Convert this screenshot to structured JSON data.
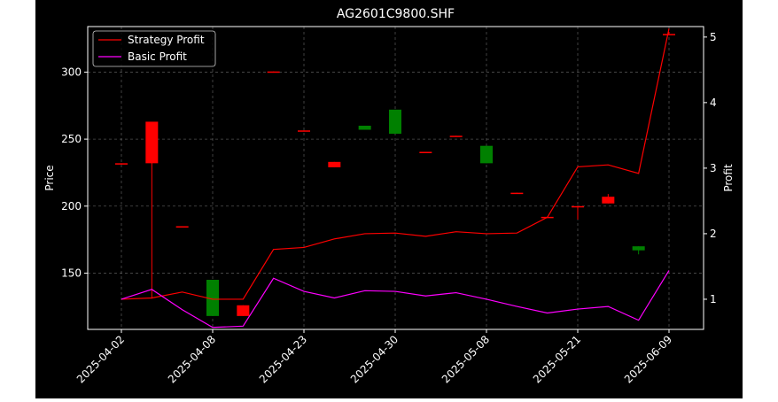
{
  "chart_data": {
    "type": "candlestick",
    "title": "AG2601C9800.SHF",
    "ylabel_left": "Price",
    "ylabel_right": "Profit",
    "xlabel": "",
    "ylim_left": [
      108,
      334
    ],
    "ylim_right": [
      0.54,
      5.16
    ],
    "yticks_left": [
      150,
      200,
      250,
      300
    ],
    "yticks_right": [
      1,
      2,
      3,
      4,
      5
    ],
    "grid": true,
    "legend_position": "upper-left",
    "background": "#000000",
    "x_tick_labels": [
      {
        "index": 0,
        "label": "2025-04-02"
      },
      {
        "index": 3,
        "label": "2025-04-08"
      },
      {
        "index": 6,
        "label": "2025-04-23"
      },
      {
        "index": 9,
        "label": "2025-04-30"
      },
      {
        "index": 12,
        "label": "2025-05-08"
      },
      {
        "index": 15,
        "label": "2025-05-21"
      },
      {
        "index": 18,
        "label": "2025-06-09"
      }
    ],
    "candles": [
      {
        "i": 0,
        "open": 231,
        "close": 232,
        "high": 232,
        "low": 231,
        "color": "#ff0000"
      },
      {
        "i": 1,
        "open": 232,
        "close": 263,
        "high": 263,
        "low": 131,
        "color": "#ff0000"
      },
      {
        "i": 2,
        "open": 184.5,
        "close": 185,
        "high": 185,
        "low": 184.5,
        "color": "#ff0000"
      },
      {
        "i": 3,
        "open": 145,
        "close": 118,
        "high": 145,
        "low": 118,
        "color": "#008000"
      },
      {
        "i": 4,
        "open": 118,
        "close": 126,
        "high": 126,
        "low": 118,
        "color": "#ff0000"
      },
      {
        "i": 5,
        "open": 300,
        "close": 300.5,
        "high": 300.5,
        "low": 300,
        "color": "#ff0000"
      },
      {
        "i": 6,
        "open": 256,
        "close": 256.5,
        "high": 256.5,
        "low": 256,
        "color": "#ff0000"
      },
      {
        "i": 7,
        "open": 229,
        "close": 233,
        "high": 233,
        "low": 229,
        "color": "#ff0000"
      },
      {
        "i": 8,
        "open": 260,
        "close": 257,
        "high": 260,
        "low": 257,
        "color": "#008000"
      },
      {
        "i": 9,
        "open": 272,
        "close": 254,
        "high": 272,
        "low": 254,
        "color": "#008000"
      },
      {
        "i": 10,
        "open": 240,
        "close": 240.5,
        "high": 240.5,
        "low": 240,
        "color": "#ff0000"
      },
      {
        "i": 11,
        "open": 252,
        "close": 252.5,
        "high": 252.5,
        "low": 252,
        "color": "#ff0000"
      },
      {
        "i": 12,
        "open": 245,
        "close": 232,
        "high": 245,
        "low": 232,
        "color": "#008000"
      },
      {
        "i": 13,
        "open": 209.5,
        "close": 210,
        "high": 210,
        "low": 209.5,
        "color": "#ff0000"
      },
      {
        "i": 14,
        "open": 191.5,
        "close": 192,
        "high": 192,
        "low": 191.5,
        "color": "#ff0000"
      },
      {
        "i": 15,
        "open": 199.5,
        "close": 200,
        "high": 200,
        "low": 190,
        "color": "#ff0000"
      },
      {
        "i": 16,
        "open": 202,
        "close": 207,
        "high": 209,
        "low": 202,
        "color": "#ff0000"
      },
      {
        "i": 17,
        "open": 170,
        "close": 167,
        "high": 170,
        "low": 164,
        "color": "#008000"
      },
      {
        "i": 18,
        "open": 328,
        "close": 328.5,
        "high": 330,
        "low": 328,
        "color": "#ff0000"
      }
    ],
    "series": [
      {
        "name": "Strategy Profit",
        "axis": "right",
        "color": "#ff0000",
        "values": [
          1.0,
          1.02,
          1.11,
          1.0,
          1.0,
          1.76,
          1.79,
          1.92,
          2.0,
          2.01,
          1.96,
          2.03,
          2.0,
          2.01,
          2.25,
          3.02,
          3.05,
          2.92,
          5.13
        ]
      },
      {
        "name": "Basic Profit",
        "axis": "right",
        "color": "#ff00ff",
        "values": [
          1.0,
          1.15,
          0.84,
          0.57,
          0.59,
          1.32,
          1.12,
          1.02,
          1.13,
          1.12,
          1.05,
          1.1,
          1.0,
          0.89,
          0.79,
          0.85,
          0.89,
          0.68,
          1.44
        ]
      }
    ]
  }
}
